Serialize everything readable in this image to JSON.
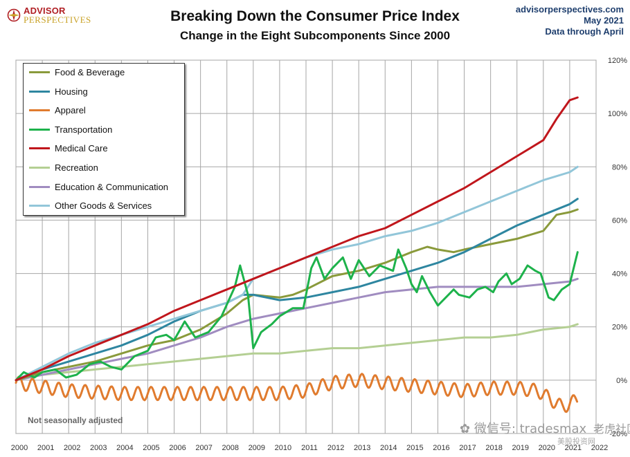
{
  "brand": {
    "line1": "ADVISOR",
    "line2": "PERSPECTIVES"
  },
  "source": {
    "site": "advisorperspectives.com",
    "date": "May 2021",
    "note": "Data through April"
  },
  "footnote": "Not seasonally adjusted",
  "watermark": {
    "main": "微信号: tradesmax",
    "sub": "美股投资网",
    "logo_text": "老虎社区"
  },
  "colors": {
    "food": "#8a9a3b",
    "housing": "#2e86a0",
    "apparel": "#e07b2e",
    "transport": "#1db24b",
    "medical": "#c0161c",
    "recreation": "#b4cf93",
    "education": "#a08cc0",
    "other": "#92c6d9"
  },
  "chart_data": {
    "type": "line",
    "title": "Breaking Down the Consumer Price Index",
    "subtitle": "Change in the Eight Subcomponents  Since 2000",
    "xlabel": "",
    "ylabel": "",
    "x_ticks": [
      "2000",
      "2001",
      "2002",
      "2003",
      "2004",
      "2005",
      "2006",
      "2007",
      "2008",
      "2009",
      "2010",
      "2011",
      "2012",
      "2013",
      "2014",
      "2015",
      "2016",
      "2017",
      "2018",
      "2019",
      "2020",
      "2021",
      "2022"
    ],
    "xlim": [
      2000,
      2022
    ],
    "y_ticks": [
      "-20%",
      "0%",
      "20%",
      "40%",
      "60%",
      "80%",
      "100%",
      "120%"
    ],
    "ylim": [
      -20,
      120
    ],
    "grid": true,
    "legend": "top-left",
    "series": [
      {
        "name": "Food & Beverage",
        "key": "food",
        "points": [
          [
            2000,
            0
          ],
          [
            2001,
            3
          ],
          [
            2002,
            5
          ],
          [
            2003,
            7
          ],
          [
            2004,
            10
          ],
          [
            2005,
            13
          ],
          [
            2006,
            15
          ],
          [
            2007,
            19
          ],
          [
            2008,
            25
          ],
          [
            2008.6,
            30
          ],
          [
            2009,
            32
          ],
          [
            2010,
            31
          ],
          [
            2010.5,
            32
          ],
          [
            2011,
            34
          ],
          [
            2012,
            39
          ],
          [
            2013,
            41
          ],
          [
            2014,
            44
          ],
          [
            2015,
            48
          ],
          [
            2015.6,
            50
          ],
          [
            2016,
            49
          ],
          [
            2016.6,
            48
          ],
          [
            2017,
            49
          ],
          [
            2018,
            51
          ],
          [
            2019,
            53
          ],
          [
            2020,
            56
          ],
          [
            2020.5,
            62
          ],
          [
            2021,
            63
          ],
          [
            2021.3,
            64
          ]
        ]
      },
      {
        "name": "Housing",
        "key": "housing",
        "points": [
          [
            2000,
            0
          ],
          [
            2001,
            4
          ],
          [
            2002,
            7
          ],
          [
            2003,
            10
          ],
          [
            2004,
            13
          ],
          [
            2005,
            17
          ],
          [
            2006,
            22
          ],
          [
            2007,
            26
          ],
          [
            2008,
            29
          ],
          [
            2008.6,
            32
          ],
          [
            2009,
            32
          ],
          [
            2010,
            30
          ],
          [
            2011,
            31
          ],
          [
            2012,
            33
          ],
          [
            2013,
            35
          ],
          [
            2014,
            38
          ],
          [
            2015,
            41
          ],
          [
            2016,
            44
          ],
          [
            2017,
            48
          ],
          [
            2018,
            53
          ],
          [
            2019,
            58
          ],
          [
            2020,
            62
          ],
          [
            2021,
            66
          ],
          [
            2021.3,
            68
          ]
        ]
      },
      {
        "name": "Apparel",
        "key": "apparel",
        "wave": 2.5,
        "osc": [
          -1,
          -4
        ],
        "points": [
          [
            2000,
            -1
          ],
          [
            2002,
            -4
          ],
          [
            2004,
            -5
          ],
          [
            2006,
            -5
          ],
          [
            2008,
            -5
          ],
          [
            2010,
            -5
          ],
          [
            2011,
            -4
          ],
          [
            2012,
            -1
          ],
          [
            2013,
            0
          ],
          [
            2014,
            -1
          ],
          [
            2015,
            -2
          ],
          [
            2016,
            -3
          ],
          [
            2017,
            -4
          ],
          [
            2018,
            -3
          ],
          [
            2019,
            -3
          ],
          [
            2019.8,
            -4
          ],
          [
            2020.4,
            -8
          ],
          [
            2020.7,
            -10
          ],
          [
            2021,
            -9
          ],
          [
            2021.3,
            -7
          ]
        ]
      },
      {
        "name": "Transportation",
        "key": "transport",
        "points": [
          [
            2000,
            0
          ],
          [
            2000.3,
            3
          ],
          [
            2000.7,
            1
          ],
          [
            2001,
            3
          ],
          [
            2001.5,
            4
          ],
          [
            2001.9,
            1
          ],
          [
            2002.3,
            2
          ],
          [
            2002.8,
            6
          ],
          [
            2003.2,
            7
          ],
          [
            2003.6,
            5
          ],
          [
            2004,
            4
          ],
          [
            2004.5,
            9
          ],
          [
            2005,
            11
          ],
          [
            2005.3,
            16
          ],
          [
            2005.7,
            17
          ],
          [
            2006,
            15
          ],
          [
            2006.4,
            22
          ],
          [
            2006.8,
            16
          ],
          [
            2007.3,
            18
          ],
          [
            2007.8,
            24
          ],
          [
            2008.3,
            35
          ],
          [
            2008.5,
            43
          ],
          [
            2008.8,
            32
          ],
          [
            2009,
            12
          ],
          [
            2009.3,
            18
          ],
          [
            2009.7,
            21
          ],
          [
            2010,
            24
          ],
          [
            2010.5,
            27
          ],
          [
            2010.9,
            27
          ],
          [
            2011.2,
            42
          ],
          [
            2011.4,
            46
          ],
          [
            2011.7,
            38
          ],
          [
            2012,
            42
          ],
          [
            2012.4,
            46
          ],
          [
            2012.7,
            38
          ],
          [
            2013,
            45
          ],
          [
            2013.4,
            39
          ],
          [
            2013.8,
            43
          ],
          [
            2014.3,
            41
          ],
          [
            2014.5,
            49
          ],
          [
            2014.8,
            42
          ],
          [
            2015,
            36
          ],
          [
            2015.2,
            33
          ],
          [
            2015.4,
            39
          ],
          [
            2015.7,
            33
          ],
          [
            2016,
            28
          ],
          [
            2016.3,
            31
          ],
          [
            2016.6,
            34
          ],
          [
            2016.8,
            32
          ],
          [
            2017.2,
            31
          ],
          [
            2017.5,
            34
          ],
          [
            2017.8,
            35
          ],
          [
            2018.1,
            33
          ],
          [
            2018.3,
            37
          ],
          [
            2018.6,
            40
          ],
          [
            2018.8,
            36
          ],
          [
            2019.1,
            38
          ],
          [
            2019.4,
            43
          ],
          [
            2019.7,
            41
          ],
          [
            2019.9,
            40
          ],
          [
            2020.2,
            31
          ],
          [
            2020.4,
            30
          ],
          [
            2020.7,
            34
          ],
          [
            2021,
            36
          ],
          [
            2021.3,
            48
          ]
        ]
      },
      {
        "name": "Medical Care",
        "key": "medical",
        "points": [
          [
            2000,
            0
          ],
          [
            2001,
            4
          ],
          [
            2002,
            9
          ],
          [
            2003,
            13
          ],
          [
            2004,
            17
          ],
          [
            2005,
            21
          ],
          [
            2006,
            26
          ],
          [
            2007,
            30
          ],
          [
            2008,
            34
          ],
          [
            2009,
            38
          ],
          [
            2010,
            42
          ],
          [
            2011,
            46
          ],
          [
            2012,
            50
          ],
          [
            2013,
            54
          ],
          [
            2014,
            57
          ],
          [
            2015,
            62
          ],
          [
            2016,
            67
          ],
          [
            2017,
            72
          ],
          [
            2018,
            78
          ],
          [
            2019,
            84
          ],
          [
            2020,
            90
          ],
          [
            2020.5,
            98
          ],
          [
            2021,
            105
          ],
          [
            2021.3,
            106
          ]
        ]
      },
      {
        "name": "Recreation",
        "key": "recreation",
        "points": [
          [
            2000,
            0
          ],
          [
            2001,
            2
          ],
          [
            2002,
            3
          ],
          [
            2003,
            4
          ],
          [
            2004,
            5
          ],
          [
            2005,
            6
          ],
          [
            2006,
            7
          ],
          [
            2007,
            8
          ],
          [
            2008,
            9
          ],
          [
            2009,
            10
          ],
          [
            2010,
            10
          ],
          [
            2011,
            11
          ],
          [
            2012,
            12
          ],
          [
            2013,
            12
          ],
          [
            2014,
            13
          ],
          [
            2015,
            14
          ],
          [
            2016,
            15
          ],
          [
            2017,
            16
          ],
          [
            2018,
            16
          ],
          [
            2019,
            17
          ],
          [
            2020,
            19
          ],
          [
            2021,
            20
          ],
          [
            2021.3,
            21
          ]
        ]
      },
      {
        "name": "Education & Communication",
        "key": "education",
        "points": [
          [
            2000,
            0
          ],
          [
            2001,
            2
          ],
          [
            2002,
            4
          ],
          [
            2003,
            6
          ],
          [
            2004,
            8
          ],
          [
            2005,
            10
          ],
          [
            2006,
            13
          ],
          [
            2007,
            16
          ],
          [
            2008,
            20
          ],
          [
            2009,
            23
          ],
          [
            2010,
            25
          ],
          [
            2011,
            27
          ],
          [
            2012,
            29
          ],
          [
            2013,
            31
          ],
          [
            2014,
            33
          ],
          [
            2015,
            34
          ],
          [
            2016,
            35
          ],
          [
            2017,
            35
          ],
          [
            2018,
            35
          ],
          [
            2019,
            35
          ],
          [
            2020,
            36
          ],
          [
            2021,
            37
          ],
          [
            2021.3,
            38
          ]
        ]
      },
      {
        "name": "Other Goods & Services",
        "key": "other",
        "points": [
          [
            2000,
            0
          ],
          [
            2001,
            5
          ],
          [
            2002,
            10
          ],
          [
            2003,
            14
          ],
          [
            2004,
            17
          ],
          [
            2005,
            20
          ],
          [
            2006,
            23
          ],
          [
            2007,
            26
          ],
          [
            2008,
            29
          ],
          [
            2008.6,
            32
          ],
          [
            2009,
            38
          ],
          [
            2010,
            42
          ],
          [
            2011,
            46
          ],
          [
            2012,
            49
          ],
          [
            2013,
            51
          ],
          [
            2014,
            54
          ],
          [
            2015,
            56
          ],
          [
            2016,
            59
          ],
          [
            2017,
            63
          ],
          [
            2018,
            67
          ],
          [
            2019,
            71
          ],
          [
            2020,
            75
          ],
          [
            2021,
            78
          ],
          [
            2021.3,
            80
          ]
        ]
      }
    ]
  }
}
